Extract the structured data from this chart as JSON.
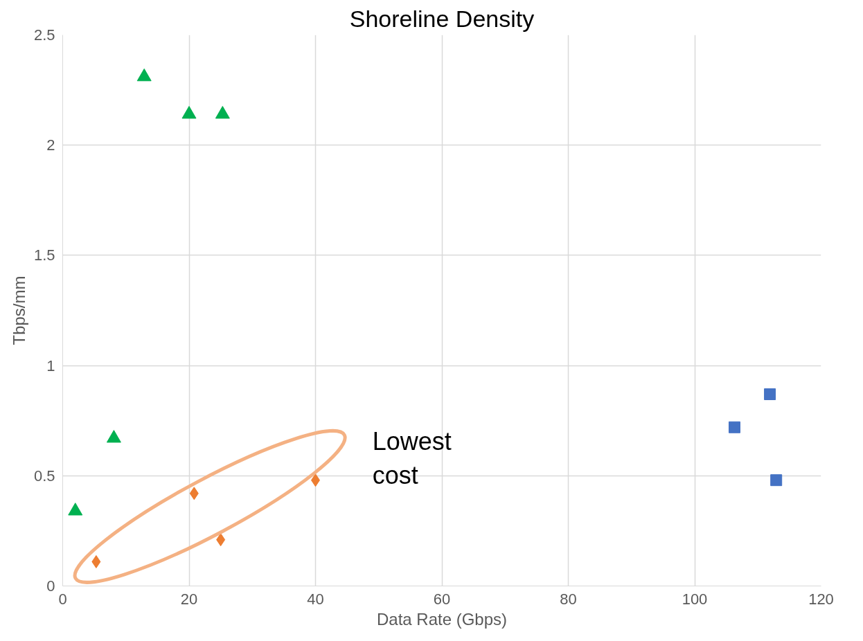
{
  "chart_data": {
    "type": "scatter",
    "title": "Shoreline Density",
    "xlabel": "Data Rate (Gbps)",
    "ylabel": "Tbps/mm",
    "xlim": [
      0,
      120
    ],
    "xticks": [
      0,
      20,
      40,
      60,
      80,
      100,
      120
    ],
    "ylim": [
      0,
      2.5
    ],
    "yticks": [
      0,
      0.5,
      1,
      1.5,
      2,
      2.5
    ],
    "grid": true,
    "series": [
      {
        "color": "#00b050",
        "marker": "triangle",
        "x": [
          2.0,
          8.1,
          12.9,
          20.0,
          25.3
        ],
        "values": [
          0.34,
          0.67,
          2.31,
          2.14,
          2.14
        ]
      },
      {
        "color": "#ed7d31",
        "marker": "diamond",
        "x": [
          5.3,
          20.8,
          25.0,
          40.0
        ],
        "values": [
          0.11,
          0.42,
          0.21,
          0.48
        ]
      },
      {
        "color": "#4472c4",
        "marker": "square",
        "x": [
          106.3,
          111.9,
          112.9
        ],
        "values": [
          0.72,
          0.87,
          0.48
        ]
      }
    ],
    "annotations": [
      "Lowest\ncost"
    ]
  }
}
